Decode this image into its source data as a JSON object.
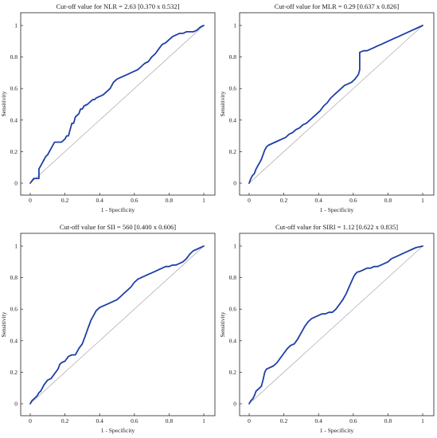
{
  "chart_data": [
    {
      "type": "line",
      "title": "Cut-off value for NLR = 2.63 [0.370 x 0.532]",
      "xlabel": "1 - Specificity",
      "ylabel": "Sensitivity",
      "xlim": [
        0,
        1
      ],
      "ylim": [
        0,
        1
      ],
      "xticks": [
        "0",
        "0.2",
        "0.4",
        "0.6",
        "0.8",
        "1"
      ],
      "yticks": [
        "0",
        "0.2",
        "0.4",
        "0.6",
        "0.8",
        "1"
      ],
      "roc_color": "#1f3fa8",
      "diagonal_color": "#9a9a9a",
      "series": [
        {
          "x": [
            0,
            0.02,
            0.05,
            0.05,
            0.07,
            0.08,
            0.09,
            0.1,
            0.12,
            0.14,
            0.16,
            0.18,
            0.2,
            0.21,
            0.22,
            0.24,
            0.25,
            0.26,
            0.28,
            0.29,
            0.3,
            0.31,
            0.33,
            0.34,
            0.36,
            0.37,
            0.38,
            0.4,
            0.42,
            0.44,
            0.46,
            0.48,
            0.5,
            0.52,
            0.54,
            0.56,
            0.58,
            0.6,
            0.62,
            0.64,
            0.66,
            0.68,
            0.7,
            0.72,
            0.74,
            0.76,
            0.78,
            0.8,
            0.82,
            0.84,
            0.86,
            0.88,
            0.9,
            0.92,
            0.94,
            0.96,
            0.98,
            1
          ],
          "y": [
            0,
            0.03,
            0.03,
            0.09,
            0.13,
            0.15,
            0.17,
            0.18,
            0.22,
            0.26,
            0.26,
            0.26,
            0.28,
            0.3,
            0.3,
            0.38,
            0.38,
            0.42,
            0.44,
            0.47,
            0.47,
            0.49,
            0.5,
            0.51,
            0.53,
            0.53,
            0.54,
            0.55,
            0.56,
            0.58,
            0.6,
            0.64,
            0.66,
            0.67,
            0.68,
            0.69,
            0.7,
            0.71,
            0.72,
            0.74,
            0.76,
            0.77,
            0.8,
            0.82,
            0.85,
            0.88,
            0.89,
            0.91,
            0.93,
            0.94,
            0.95,
            0.95,
            0.96,
            0.96,
            0.96,
            0.97,
            0.99,
            1
          ]
        }
      ]
    },
    {
      "type": "line",
      "title": "Cut-off value for MLR = 0.29 [0.637 x 0.826]",
      "xlabel": "1 - Specificity",
      "ylabel": "Sensitivity",
      "xlim": [
        0,
        1
      ],
      "ylim": [
        0,
        1
      ],
      "xticks": [
        "0",
        "0.2",
        "0.4",
        "0.6",
        "0.8",
        "1"
      ],
      "yticks": [
        "0",
        "0.2",
        "0.4",
        "0.6",
        "0.8",
        "1"
      ],
      "roc_color": "#1f3fa8",
      "diagonal_color": "#9a9a9a",
      "series": [
        {
          "x": [
            0,
            0.01,
            0.02,
            0.03,
            0.04,
            0.05,
            0.06,
            0.07,
            0.08,
            0.09,
            0.1,
            0.11,
            0.13,
            0.15,
            0.17,
            0.19,
            0.21,
            0.23,
            0.25,
            0.27,
            0.29,
            0.31,
            0.33,
            0.35,
            0.37,
            0.39,
            0.41,
            0.43,
            0.45,
            0.47,
            0.49,
            0.51,
            0.53,
            0.55,
            0.57,
            0.59,
            0.61,
            0.63,
            0.637,
            0.637,
            0.66,
            0.68,
            0.7,
            0.72,
            0.74,
            0.76,
            0.78,
            0.8,
            0.82,
            0.84,
            0.86,
            0.88,
            0.9,
            0.92,
            0.94,
            0.96,
            0.98,
            1
          ],
          "y": [
            0,
            0.03,
            0.05,
            0.06,
            0.09,
            0.11,
            0.13,
            0.15,
            0.18,
            0.21,
            0.23,
            0.24,
            0.25,
            0.26,
            0.27,
            0.28,
            0.29,
            0.31,
            0.32,
            0.34,
            0.35,
            0.37,
            0.38,
            0.4,
            0.42,
            0.44,
            0.46,
            0.49,
            0.51,
            0.54,
            0.56,
            0.58,
            0.6,
            0.62,
            0.63,
            0.64,
            0.66,
            0.69,
            0.72,
            0.83,
            0.84,
            0.84,
            0.85,
            0.86,
            0.87,
            0.88,
            0.89,
            0.9,
            0.91,
            0.92,
            0.93,
            0.94,
            0.95,
            0.96,
            0.97,
            0.98,
            0.99,
            1
          ]
        }
      ]
    },
    {
      "type": "line",
      "title": "Cut-off value for SII = 560 [0.400 x 0.606]",
      "xlabel": "1 - Specificity",
      "ylabel": "Sensitivity",
      "xlim": [
        0,
        1
      ],
      "ylim": [
        0,
        1
      ],
      "xticks": [
        "0",
        "0.2",
        "0.4",
        "0.6",
        "0.8",
        "1"
      ],
      "yticks": [
        "0",
        "0.2",
        "0.4",
        "0.6",
        "0.8",
        "1"
      ],
      "roc_color": "#1f3fa8",
      "diagonal_color": "#9a9a9a",
      "series": [
        {
          "x": [
            0,
            0.01,
            0.02,
            0.03,
            0.04,
            0.05,
            0.06,
            0.08,
            0.1,
            0.12,
            0.14,
            0.16,
            0.17,
            0.18,
            0.2,
            0.22,
            0.24,
            0.26,
            0.28,
            0.3,
            0.31,
            0.32,
            0.33,
            0.34,
            0.35,
            0.36,
            0.37,
            0.38,
            0.39,
            0.4,
            0.42,
            0.44,
            0.46,
            0.48,
            0.5,
            0.52,
            0.54,
            0.56,
            0.58,
            0.6,
            0.62,
            0.64,
            0.66,
            0.68,
            0.7,
            0.72,
            0.74,
            0.76,
            0.78,
            0.8,
            0.82,
            0.84,
            0.86,
            0.88,
            0.9,
            0.92,
            0.94,
            0.96,
            0.98,
            1
          ],
          "y": [
            0,
            0.02,
            0.03,
            0.04,
            0.05,
            0.07,
            0.08,
            0.12,
            0.15,
            0.16,
            0.19,
            0.22,
            0.25,
            0.26,
            0.27,
            0.3,
            0.31,
            0.31,
            0.35,
            0.38,
            0.41,
            0.44,
            0.47,
            0.5,
            0.53,
            0.55,
            0.57,
            0.59,
            0.6,
            0.61,
            0.62,
            0.63,
            0.64,
            0.65,
            0.66,
            0.68,
            0.7,
            0.72,
            0.74,
            0.77,
            0.79,
            0.8,
            0.81,
            0.82,
            0.83,
            0.84,
            0.85,
            0.86,
            0.87,
            0.87,
            0.88,
            0.88,
            0.89,
            0.9,
            0.92,
            0.95,
            0.97,
            0.98,
            0.99,
            1
          ]
        }
      ]
    },
    {
      "type": "line",
      "title": "Cut-off value for SIRI = 1.12 [0.622 x 0.835]",
      "xlabel": "1 - Specificity",
      "ylabel": "Sensitivity",
      "xlim": [
        0,
        1
      ],
      "ylim": [
        0,
        1
      ],
      "xticks": [
        "0",
        "0.2",
        "0.4",
        "0.6",
        "0.8",
        "1"
      ],
      "yticks": [
        "0",
        "0.2",
        "0.4",
        "0.6",
        "0.8",
        "1"
      ],
      "roc_color": "#1f3fa8",
      "diagonal_color": "#9a9a9a",
      "series": [
        {
          "x": [
            0,
            0.01,
            0.02,
            0.03,
            0.04,
            0.05,
            0.06,
            0.07,
            0.08,
            0.09,
            0.1,
            0.12,
            0.14,
            0.16,
            0.18,
            0.2,
            0.22,
            0.24,
            0.26,
            0.28,
            0.3,
            0.32,
            0.34,
            0.36,
            0.38,
            0.4,
            0.42,
            0.44,
            0.46,
            0.48,
            0.5,
            0.52,
            0.54,
            0.56,
            0.58,
            0.6,
            0.61,
            0.622,
            0.64,
            0.66,
            0.68,
            0.7,
            0.72,
            0.74,
            0.76,
            0.78,
            0.8,
            0.82,
            0.84,
            0.86,
            0.88,
            0.9,
            0.92,
            0.94,
            0.96,
            0.98,
            1
          ],
          "y": [
            0,
            0.02,
            0.03,
            0.05,
            0.08,
            0.09,
            0.1,
            0.11,
            0.15,
            0.2,
            0.22,
            0.23,
            0.24,
            0.26,
            0.29,
            0.32,
            0.35,
            0.37,
            0.38,
            0.41,
            0.45,
            0.49,
            0.52,
            0.54,
            0.55,
            0.56,
            0.57,
            0.57,
            0.58,
            0.58,
            0.6,
            0.63,
            0.66,
            0.7,
            0.75,
            0.8,
            0.82,
            0.835,
            0.84,
            0.85,
            0.86,
            0.86,
            0.87,
            0.87,
            0.88,
            0.89,
            0.9,
            0.92,
            0.93,
            0.94,
            0.95,
            0.96,
            0.97,
            0.98,
            0.99,
            0.995,
            1
          ]
        }
      ]
    }
  ]
}
